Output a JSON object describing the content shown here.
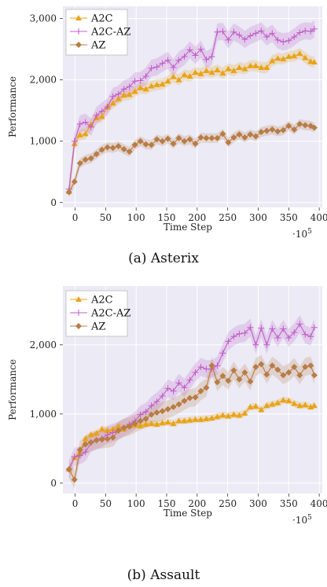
{
  "chart_data": [
    {
      "type": "line",
      "caption": "(a) Asterix",
      "xlabel": "Time Step",
      "ylabel": "Performance",
      "x_multiplier": "·10",
      "x_multiplier_exp": "5",
      "xlim": [
        -20,
        405
      ],
      "ylim": [
        -80,
        3200
      ],
      "xticks": [
        0,
        50,
        100,
        150,
        200,
        250,
        300,
        350,
        400
      ],
      "xtick_labels": [
        "0",
        "50",
        "100",
        "150",
        "200",
        "250",
        "300",
        "350",
        "400"
      ],
      "yticks": [
        0,
        1000,
        2000,
        3000
      ],
      "ytick_labels": [
        "0",
        "1,000",
        "2,000",
        "3,000"
      ],
      "legend_position": "top-left",
      "x": [
        -10,
        -1,
        8,
        17,
        26,
        35,
        44,
        53,
        62,
        71,
        80,
        89,
        98,
        107,
        116,
        125,
        134,
        143,
        152,
        161,
        170,
        179,
        188,
        197,
        206,
        215,
        224,
        233,
        242,
        251,
        260,
        269,
        278,
        287,
        296,
        305,
        314,
        323,
        332,
        341,
        350,
        359,
        368,
        377,
        386,
        392
      ],
      "series": [
        {
          "name": "A2C",
          "color": "#e8a317",
          "marker": "triangle",
          "band": 90,
          "values": [
            180,
            960,
            1100,
            1120,
            1270,
            1380,
            1400,
            1560,
            1620,
            1690,
            1750,
            1760,
            1810,
            1870,
            1850,
            1900,
            1920,
            1930,
            1980,
            2050,
            2000,
            2080,
            2060,
            2120,
            2100,
            2150,
            2120,
            2160,
            2110,
            2180,
            2150,
            2200,
            2180,
            2230,
            2230,
            2200,
            2200,
            2310,
            2350,
            2340,
            2380,
            2390,
            2430,
            2360,
            2300,
            2290
          ]
        },
        {
          "name": "A2C-AZ",
          "color": "#c05ec7",
          "marker": "plus",
          "band": 140,
          "values": [
            220,
            1000,
            1280,
            1310,
            1230,
            1420,
            1490,
            1560,
            1730,
            1770,
            1850,
            1890,
            1980,
            1990,
            2060,
            2190,
            2210,
            2270,
            2320,
            2200,
            2320,
            2380,
            2490,
            2400,
            2500,
            2330,
            2380,
            2780,
            2790,
            2650,
            2780,
            2730,
            2660,
            2720,
            2760,
            2800,
            2700,
            2760,
            2650,
            2620,
            2640,
            2700,
            2770,
            2800,
            2790,
            2830
          ]
        },
        {
          "name": "AZ",
          "color": "#b87c45",
          "marker": "diamond",
          "band": 80,
          "values": [
            170,
            340,
            640,
            700,
            720,
            790,
            860,
            900,
            890,
            920,
            870,
            830,
            940,
            1000,
            950,
            940,
            1030,
            1000,
            1040,
            960,
            1050,
            1000,
            1030,
            960,
            1060,
            1050,
            1050,
            1050,
            1120,
            980,
            1060,
            1110,
            1060,
            1110,
            1080,
            1150,
            1170,
            1190,
            1160,
            1180,
            1250,
            1190,
            1280,
            1260,
            1250,
            1220
          ]
        }
      ]
    },
    {
      "type": "line",
      "caption": "(b) Assault",
      "xlabel": "Time Step",
      "ylabel": "Performance",
      "x_multiplier": "·10",
      "x_multiplier_exp": "5",
      "xlim": [
        -20,
        405
      ],
      "ylim": [
        -150,
        2850
      ],
      "xticks": [
        0,
        50,
        100,
        150,
        200,
        250,
        300,
        350,
        400
      ],
      "xtick_labels": [
        "0",
        "50",
        "100",
        "150",
        "200",
        "250",
        "300",
        "350",
        "400"
      ],
      "yticks": [
        0,
        1000,
        2000
      ],
      "ytick_labels": [
        "0",
        "1,000",
        "2,000"
      ],
      "legend_position": "top-left",
      "x": [
        -10,
        -1,
        8,
        17,
        26,
        35,
        44,
        53,
        62,
        71,
        80,
        89,
        98,
        107,
        116,
        125,
        134,
        143,
        152,
        161,
        170,
        179,
        188,
        197,
        206,
        215,
        224,
        233,
        242,
        251,
        260,
        269,
        278,
        287,
        296,
        305,
        314,
        323,
        332,
        341,
        350,
        359,
        368,
        377,
        386,
        392
      ],
      "series": [
        {
          "name": "A2C",
          "color": "#e8a317",
          "marker": "triangle",
          "band": 50,
          "values": [
            200,
            370,
            450,
            640,
            700,
            720,
            780,
            760,
            780,
            820,
            780,
            830,
            840,
            830,
            850,
            860,
            850,
            870,
            880,
            860,
            900,
            900,
            910,
            920,
            920,
            930,
            940,
            960,
            980,
            970,
            990,
            980,
            1010,
            1100,
            1110,
            1060,
            1120,
            1140,
            1160,
            1200,
            1190,
            1150,
            1120,
            1130,
            1100,
            1120
          ]
        },
        {
          "name": "A2C-AZ",
          "color": "#c05ec7",
          "marker": "plus",
          "band": 130,
          "values": [
            200,
            380,
            400,
            450,
            580,
            620,
            650,
            700,
            730,
            760,
            800,
            850,
            900,
            990,
            1030,
            1120,
            1180,
            1260,
            1370,
            1330,
            1450,
            1380,
            1490,
            1600,
            1680,
            1650,
            1650,
            1700,
            1880,
            2050,
            2120,
            2160,
            2170,
            2250,
            2000,
            2240,
            2000,
            2230,
            2100,
            2230,
            2100,
            2180,
            2300,
            2150,
            2120,
            2250
          ]
        },
        {
          "name": "AZ",
          "color": "#b87c45",
          "marker": "diamond",
          "band": 130,
          "values": [
            200,
            50,
            480,
            560,
            590,
            620,
            630,
            640,
            660,
            760,
            800,
            820,
            860,
            900,
            930,
            990,
            1020,
            1040,
            1070,
            1100,
            1140,
            1190,
            1230,
            1240,
            1330,
            1380,
            1700,
            1460,
            1550,
            1480,
            1630,
            1500,
            1600,
            1470,
            1680,
            1720,
            1570,
            1700,
            1640,
            1560,
            1600,
            1680,
            1560,
            1680,
            1700,
            1560
          ]
        }
      ]
    }
  ]
}
